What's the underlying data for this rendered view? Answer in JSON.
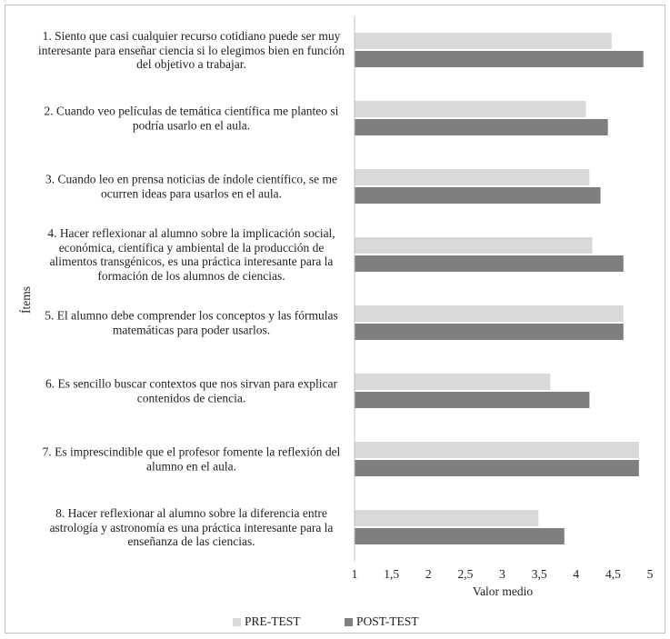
{
  "chart_data": {
    "type": "barh",
    "x_label": "Valor medio",
    "y_label": "Ítems",
    "categories": [
      "1. Siento que casi cualquier recurso cotidiano puede ser muy interesante para enseñar ciencia si lo elegimos bien en función del objetivo a trabajar.",
      "2. Cuando veo películas de temática científica me planteo si podría usarlo en el aula.",
      "3. Cuando leo en prensa noticias de índole científico, se me ocurren ideas para usarlos en el aula.",
      "4. Hacer reflexionar al alumno sobre la implicación social, económica, científica y ambiental de la producción de alimentos transgénicos, es una práctica interesante para la formación de los alumnos de ciencias.",
      "5. El alumno debe comprender los conceptos y las fórmulas matemáticas para poder usarlos.",
      "6. Es sencillo buscar contextos que nos sirvan para explicar contenidos de ciencia.",
      "7. Es imprescindible que el profesor fomente la reflexión del alumno en el aula.",
      "8. Hacer reflexionar al alumno sobre la diferencia entre astrología y astronomía es una práctica interesante para la enseñanza de las ciencias."
    ],
    "series": [
      {
        "name": "PRE-TEST",
        "color": "#d9d9d9",
        "values": [
          4.48,
          4.13,
          4.18,
          4.22,
          4.64,
          3.65,
          4.85,
          3.49
        ]
      },
      {
        "name": "POST-TEST",
        "color": "#7f7f7f",
        "values": [
          4.91,
          4.43,
          4.33,
          4.64,
          4.64,
          4.18,
          4.85,
          3.84
        ]
      }
    ],
    "xlim": [
      1,
      5
    ],
    "xticks": [
      1,
      {
        "value": 1.5,
        "label": "1,5"
      },
      2,
      {
        "value": 2.5,
        "label": "2,5"
      },
      3,
      {
        "value": 3.5,
        "label": "3,5"
      },
      4,
      {
        "value": 4.5,
        "label": "4,5"
      },
      5
    ],
    "grid": false,
    "legend": "bottom"
  }
}
